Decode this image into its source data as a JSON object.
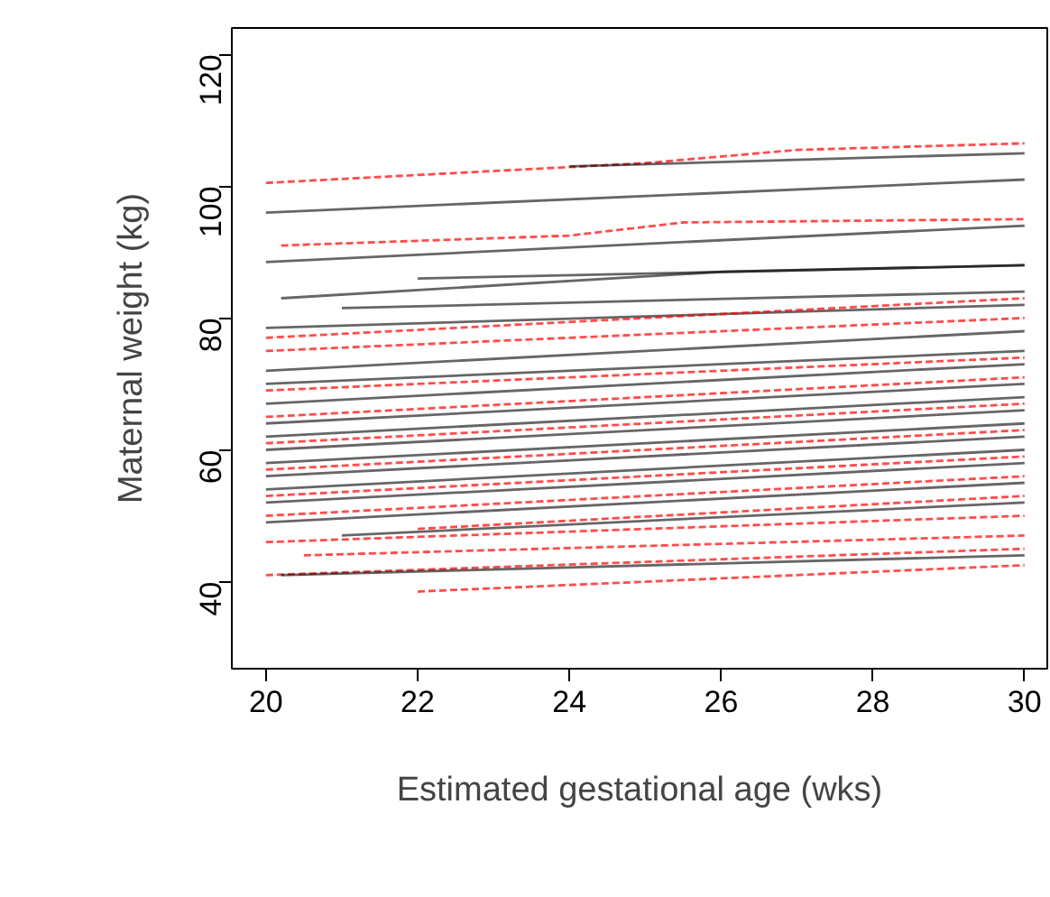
{
  "chart_data": {
    "type": "line",
    "xlabel": "Estimated gestational age (wks)",
    "ylabel": "Maternal weight (kg)",
    "xlim": [
      19.55,
      30.3
    ],
    "ylim": [
      26.8,
      124
    ],
    "xticks": [
      20,
      22,
      24,
      26,
      28,
      30
    ],
    "yticks": [
      40,
      60,
      80,
      100,
      120
    ],
    "grid": false,
    "marker": "none",
    "series": [
      {
        "color": "#ff0000",
        "line_style": "dashed",
        "x": [
          20,
          25,
          27,
          30
        ],
        "values": [
          100.5,
          103.5,
          105.5,
          106.5
        ]
      },
      {
        "color": "#000000",
        "line_style": "solid",
        "x": [
          24,
          30
        ],
        "values": [
          103,
          105
        ]
      },
      {
        "color": "#000000",
        "line_style": "solid",
        "x": [
          20,
          30
        ],
        "values": [
          96,
          101
        ]
      },
      {
        "color": "#ff0000",
        "line_style": "dashed",
        "x": [
          20.2,
          24,
          25.5,
          30
        ],
        "values": [
          91,
          92.5,
          94.5,
          95
        ]
      },
      {
        "color": "#000000",
        "line_style": "solid",
        "x": [
          20,
          30
        ],
        "values": [
          88.5,
          94
        ]
      },
      {
        "color": "#000000",
        "line_style": "solid",
        "x": [
          20.2,
          26,
          30
        ],
        "values": [
          83,
          87,
          88
        ]
      },
      {
        "color": "#000000",
        "line_style": "solid",
        "x": [
          22,
          30
        ],
        "values": [
          86,
          88
        ]
      },
      {
        "color": "#000000",
        "line_style": "solid",
        "x": [
          21,
          30
        ],
        "values": [
          81.5,
          84
        ]
      },
      {
        "color": "#000000",
        "line_style": "solid",
        "x": [
          20,
          30
        ],
        "values": [
          78.5,
          82
        ]
      },
      {
        "color": "#ff0000",
        "line_style": "dashed",
        "x": [
          20,
          30
        ],
        "values": [
          77,
          83
        ]
      },
      {
        "color": "#ff0000",
        "line_style": "dashed",
        "x": [
          20,
          30
        ],
        "values": [
          75,
          80
        ]
      },
      {
        "color": "#000000",
        "line_style": "solid",
        "x": [
          20,
          30
        ],
        "values": [
          72,
          78
        ]
      },
      {
        "color": "#000000",
        "line_style": "solid",
        "x": [
          20,
          30
        ],
        "values": [
          70,
          75
        ]
      },
      {
        "color": "#ff0000",
        "line_style": "dashed",
        "x": [
          20,
          30
        ],
        "values": [
          69,
          74
        ]
      },
      {
        "color": "#000000",
        "line_style": "solid",
        "x": [
          20,
          30
        ],
        "values": [
          67,
          73
        ]
      },
      {
        "color": "#ff0000",
        "line_style": "dashed",
        "x": [
          20,
          30
        ],
        "values": [
          65,
          71
        ]
      },
      {
        "color": "#000000",
        "line_style": "solid",
        "x": [
          20,
          30
        ],
        "values": [
          64,
          70
        ]
      },
      {
        "color": "#000000",
        "line_style": "solid",
        "x": [
          20,
          30
        ],
        "values": [
          62,
          68
        ]
      },
      {
        "color": "#ff0000",
        "line_style": "dashed",
        "x": [
          20,
          30
        ],
        "values": [
          61,
          67
        ]
      },
      {
        "color": "#000000",
        "line_style": "solid",
        "x": [
          20,
          30
        ],
        "values": [
          60,
          66
        ]
      },
      {
        "color": "#000000",
        "line_style": "solid",
        "x": [
          20,
          30
        ],
        "values": [
          58,
          64
        ]
      },
      {
        "color": "#ff0000",
        "line_style": "dashed",
        "x": [
          20,
          30
        ],
        "values": [
          57,
          63
        ]
      },
      {
        "color": "#000000",
        "line_style": "solid",
        "x": [
          20,
          30
        ],
        "values": [
          56,
          62
        ]
      },
      {
        "color": "#000000",
        "line_style": "solid",
        "x": [
          20,
          30
        ],
        "values": [
          54,
          60
        ]
      },
      {
        "color": "#ff0000",
        "line_style": "dashed",
        "x": [
          20,
          30
        ],
        "values": [
          53,
          59
        ]
      },
      {
        "color": "#000000",
        "line_style": "solid",
        "x": [
          20,
          30
        ],
        "values": [
          52,
          58
        ]
      },
      {
        "color": "#ff0000",
        "line_style": "dashed",
        "x": [
          20,
          30
        ],
        "values": [
          50,
          56
        ]
      },
      {
        "color": "#000000",
        "line_style": "solid",
        "x": [
          20,
          30
        ],
        "values": [
          49,
          55
        ]
      },
      {
        "color": "#ff0000",
        "line_style": "dashed",
        "x": [
          22,
          30
        ],
        "values": [
          48,
          53
        ]
      },
      {
        "color": "#000000",
        "line_style": "solid",
        "x": [
          21,
          30
        ],
        "values": [
          47,
          52
        ]
      },
      {
        "color": "#ff0000",
        "line_style": "dashed",
        "x": [
          20,
          30
        ],
        "values": [
          46,
          50
        ]
      },
      {
        "color": "#ff0000",
        "line_style": "dashed",
        "x": [
          20.5,
          30
        ],
        "values": [
          44,
          47
        ]
      },
      {
        "color": "#ff0000",
        "line_style": "dashed",
        "x": [
          20,
          30
        ],
        "values": [
          41,
          45
        ]
      },
      {
        "color": "#000000",
        "line_style": "solid",
        "x": [
          20.2,
          30
        ],
        "values": [
          41,
          44
        ]
      },
      {
        "color": "#ff0000",
        "line_style": "dashed",
        "x": [
          22,
          28,
          30
        ],
        "values": [
          38.5,
          41.5,
          42.5
        ]
      }
    ]
  }
}
